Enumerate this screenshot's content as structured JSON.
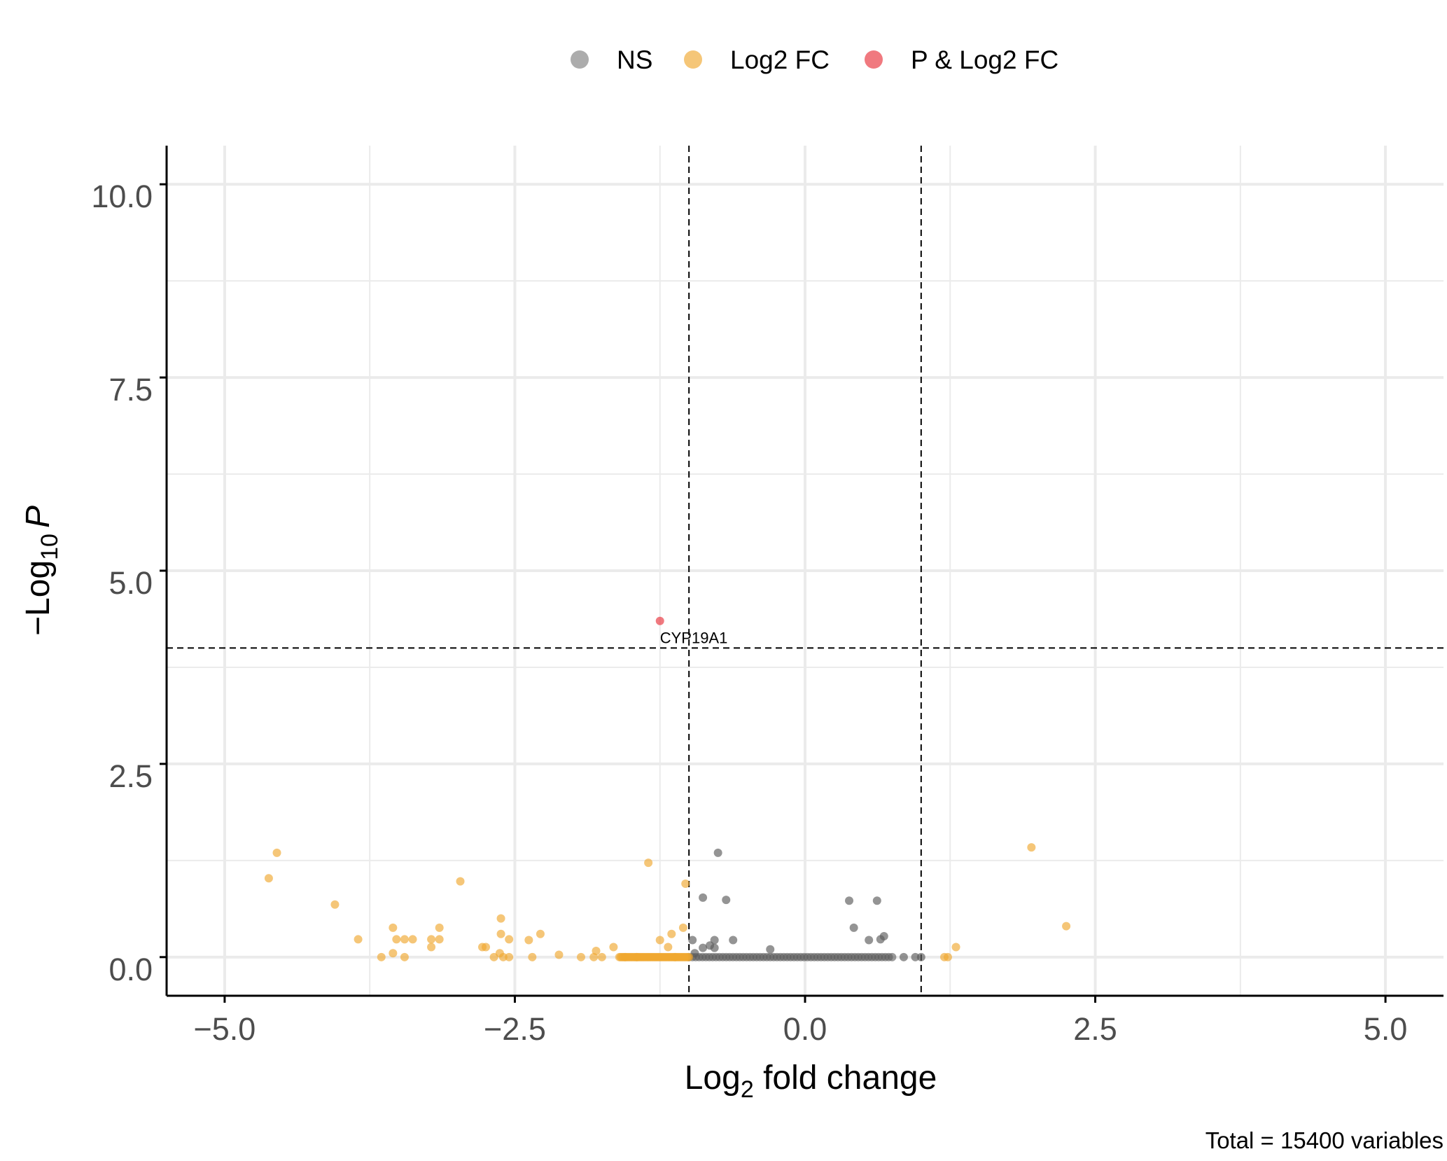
{
  "chart_data": {
    "type": "scatter",
    "title": "",
    "xlabel": {
      "main": "Log",
      "sub": "2",
      "rest": " fold change"
    },
    "ylabel": {
      "pre": "−Log",
      "sub": "10",
      "italic": "P"
    },
    "caption": "Total = 15400 variables",
    "xlim": [
      -5.5,
      5.5
    ],
    "ylim": [
      -0.5,
      10.5
    ],
    "x_ticks": [
      -5.0,
      -2.5,
      0.0,
      2.5,
      5.0
    ],
    "x_tick_labels": [
      "−5.0",
      "−2.5",
      "0.0",
      "2.5",
      "5.0"
    ],
    "y_ticks": [
      0.0,
      2.5,
      5.0,
      7.5,
      10.0
    ],
    "y_tick_labels": [
      "0.0",
      "2.5",
      "5.0",
      "7.5",
      "10.0"
    ],
    "cutoffs": {
      "fc": [
        -1,
        1
      ],
      "p": 4.0
    },
    "grid": true,
    "legend_position": "top",
    "legend": [
      {
        "name": "NS",
        "color": "#808080"
      },
      {
        "name": "Log2 FC",
        "color": "#f0a830"
      },
      {
        "name": "P & Log2 FC",
        "color": "#e8313a"
      }
    ],
    "series": [
      {
        "name": "NS",
        "color": "#5a5a5a",
        "points": [
          [
            -0.75,
            1.35
          ],
          [
            -0.88,
            0.77
          ],
          [
            -0.68,
            0.74
          ],
          [
            0.38,
            0.73
          ],
          [
            0.62,
            0.73
          ],
          [
            0.42,
            0.38
          ],
          [
            0.68,
            0.27
          ],
          [
            0.65,
            0.23
          ],
          [
            0.55,
            0.22
          ],
          [
            -0.62,
            0.22
          ],
          [
            -0.78,
            0.22
          ],
          [
            -0.97,
            0.22
          ],
          [
            -0.82,
            0.15
          ],
          [
            -0.3,
            0.1
          ],
          [
            -0.78,
            0.12
          ],
          [
            -0.88,
            0.12
          ],
          [
            -0.95,
            0.05
          ],
          [
            0.85,
            0.0
          ],
          [
            0.95,
            0.0
          ],
          [
            1.0,
            0.0
          ]
        ],
        "band": {
          "x_from": -1.0,
          "x_to": 0.75,
          "y": 0.0
        }
      },
      {
        "name": "Log2 FC",
        "color": "#f0a830",
        "points": [
          [
            -4.55,
            1.35
          ],
          [
            -4.62,
            1.02
          ],
          [
            -4.05,
            0.68
          ],
          [
            -3.85,
            0.23
          ],
          [
            -3.55,
            0.38
          ],
          [
            -3.52,
            0.23
          ],
          [
            -3.45,
            0.23
          ],
          [
            -3.38,
            0.23
          ],
          [
            -3.55,
            0.05
          ],
          [
            -3.65,
            0.0
          ],
          [
            -3.45,
            0.0
          ],
          [
            -3.15,
            0.38
          ],
          [
            -3.15,
            0.23
          ],
          [
            -3.22,
            0.23
          ],
          [
            -3.22,
            0.13
          ],
          [
            -2.97,
            0.98
          ],
          [
            -2.62,
            0.5
          ],
          [
            -2.62,
            0.3
          ],
          [
            -2.55,
            0.23
          ],
          [
            -2.38,
            0.22
          ],
          [
            -2.28,
            0.3
          ],
          [
            -2.75,
            0.13
          ],
          [
            -2.78,
            0.13
          ],
          [
            -2.63,
            0.05
          ],
          [
            -2.55,
            0.0
          ],
          [
            -2.6,
            0.0
          ],
          [
            -2.68,
            0.0
          ],
          [
            -2.35,
            0.0
          ],
          [
            -2.12,
            0.03
          ],
          [
            -1.93,
            0.0
          ],
          [
            -1.8,
            0.08
          ],
          [
            -1.82,
            0.0
          ],
          [
            -1.75,
            0.0
          ],
          [
            -1.65,
            0.13
          ],
          [
            -1.55,
            0.0
          ],
          [
            -1.45,
            0.0
          ],
          [
            -1.35,
            1.22
          ],
          [
            -1.25,
            0.22
          ],
          [
            -1.15,
            0.3
          ],
          [
            -1.05,
            0.38
          ],
          [
            -1.03,
            0.95
          ],
          [
            -1.18,
            0.13
          ],
          [
            -1.12,
            0.0
          ],
          [
            1.95,
            1.42
          ],
          [
            2.25,
            0.4
          ],
          [
            1.3,
            0.13
          ],
          [
            1.2,
            0.0
          ],
          [
            1.23,
            0.0
          ]
        ],
        "band": {
          "x_from": -1.6,
          "x_to": -1.0,
          "y": 0.0
        }
      },
      {
        "name": "P & Log2 FC",
        "color": "#e8313a",
        "points": [
          [
            -1.25,
            4.35
          ]
        ]
      }
    ],
    "annotations": [
      {
        "text": "CYP19A1",
        "x": -1.25,
        "y": 4.35
      }
    ]
  }
}
